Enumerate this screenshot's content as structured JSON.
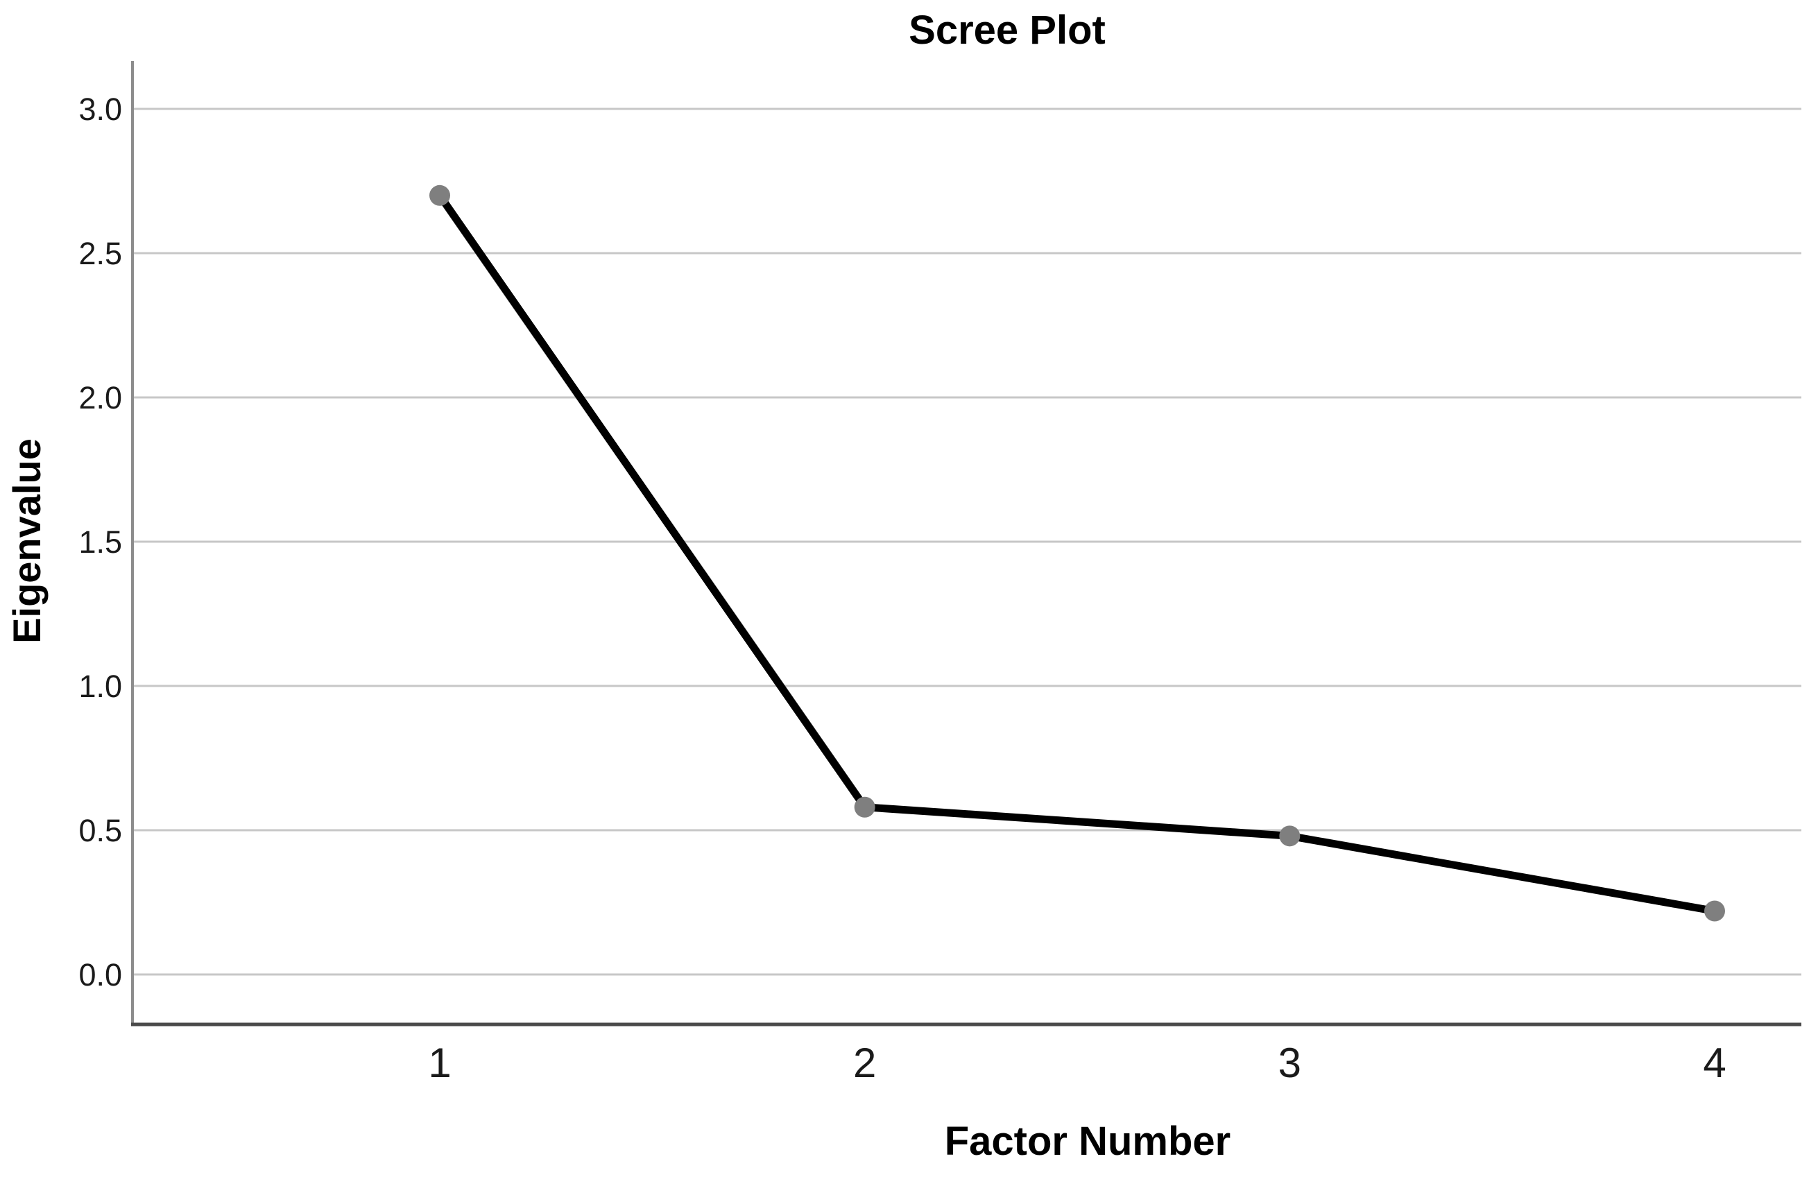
{
  "page": {
    "background": "#ffffff"
  },
  "chart_data": {
    "type": "line",
    "title": "Scree Plot",
    "xlabel": "Factor Number",
    "ylabel": "Eigenvalue",
    "x": [
      1,
      2,
      3,
      4
    ],
    "x_tick_labels": [
      "1",
      "2",
      "3",
      "4"
    ],
    "values": [
      2.7,
      0.58,
      0.48,
      0.22
    ],
    "series": [
      {
        "name": "Eigenvalue",
        "values": [
          2.7,
          0.58,
          0.48,
          0.22
        ]
      }
    ],
    "y_ticks": [
      0.0,
      0.5,
      1.0,
      1.5,
      2.0,
      2.5,
      3.0
    ],
    "y_tick_labels": [
      "0.0",
      "0.5",
      "1.0",
      "1.5",
      "2.0",
      "2.5",
      "3.0"
    ],
    "ylim": [
      -0.17,
      3.17
    ],
    "xlim": [
      0.28,
      4.2
    ],
    "grid": true,
    "legend": "none",
    "marker": "circle",
    "colors": {
      "line": "#000000",
      "marker": "#7f7f7f",
      "gridline": "#c7c7c7",
      "y_axis_line": "#8c8c8c",
      "x_axis_line": "#4a4a4a",
      "text": "#1a1a1a",
      "title_text": "#000000",
      "background": "#ffffff"
    }
  }
}
